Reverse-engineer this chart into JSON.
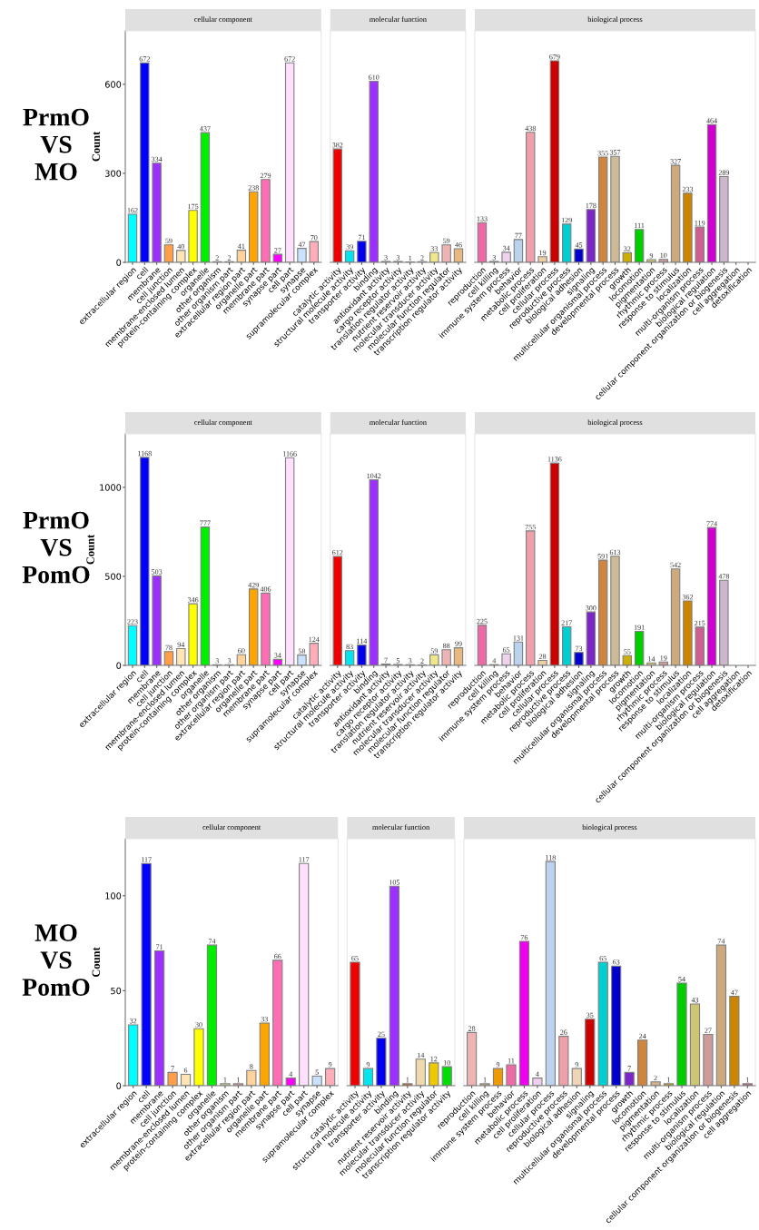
{
  "chart_data": [
    {
      "type": "bar",
      "title": "cellular component",
      "ylabel": "Count",
      "annotations": [
        "PrmO\nVS\nMO"
      ],
      "ylim": [
        0,
        780
      ],
      "yticks": [
        0,
        300,
        600
      ],
      "data_labels": true,
      "categories": [
        "extracellular region",
        "cell",
        "membrane",
        "cell junction",
        "membrane-enclosed lumen",
        "protein-containing complex",
        "organelle",
        "other organism",
        "other organism part",
        "extracellular region part",
        "organelle part",
        "membrane part",
        "synapse part",
        "cell part",
        "synapse",
        "supramolecular complex"
      ],
      "values": [
        162,
        672,
        334,
        59,
        40,
        175,
        437,
        2,
        2,
        41,
        238,
        279,
        27,
        672,
        47,
        70
      ],
      "colors": [
        "#00ffff",
        "#0000ff",
        "#9b30ff",
        "#ff9f4a",
        "#ffe4b5",
        "#ffff00",
        "#00ee00",
        "#eee8aa",
        "#f4a0a0",
        "#ffd39b",
        "#ffa500",
        "#ff6eb4",
        "#ff00ff",
        "#ffe1ff",
        "#cae1ff",
        "#ffaeb9"
      ]
    },
    {
      "type": "bar",
      "title": "molecular function",
      "tick_labels": "x",
      "ylim": [
        0,
        780
      ],
      "data_labels": true,
      "categories": [
        "catalytic activity",
        "structural molecule activity",
        "transporter activity",
        "binding",
        "antioxidant activity",
        "cargo receptor activity",
        "translation regulator activity",
        "nutrient reservoir activity",
        "molecular transducer activity",
        "molecular function regulator",
        "transcription regulator activity"
      ],
      "values": [
        382,
        39,
        71,
        610,
        3,
        3,
        1,
        2,
        33,
        59,
        46
      ],
      "colors": [
        "#ee0000",
        "#00e5ee",
        "#0000ee",
        "#9b30ff",
        "#cd853f",
        "#deb887",
        "#8b8378",
        "#006400",
        "#f0e68c",
        "#eeb4b4",
        "#e8b87f"
      ]
    },
    {
      "type": "bar",
      "title": "biological process",
      "tick_labels": "x",
      "ylim": [
        0,
        780
      ],
      "data_labels": true,
      "categories": [
        "reproduction",
        "cell killing",
        "immune system process",
        "behavior",
        "metabolic process",
        "cell proliferation",
        "cellular process",
        "reproductive process",
        "biological adhesion",
        "signaling",
        "multicellular organismal process",
        "developmental process",
        "growth",
        "locomotion",
        "pigmentation",
        "rhythmic process",
        "response to stimulus",
        "localization",
        "multi-organism process",
        "biological regulation",
        "cellular component organization or biogenesis",
        "cell aggregation",
        "detoxification"
      ],
      "values": [
        133,
        3,
        34,
        77,
        438,
        19,
        679,
        129,
        45,
        178,
        355,
        357,
        32,
        111,
        9,
        10,
        327,
        233,
        119,
        464,
        289,
        null,
        null
      ],
      "colors": [
        "#ee6aa7",
        "#8b1c62",
        "#eed2ee",
        "#b9d3ee",
        "#f0a0aa",
        "#eecfa1",
        "#cd0000",
        "#00ced1",
        "#0000cd",
        "#7b27c8",
        "#cd853f",
        "#cdba96",
        "#cdad00",
        "#00cd00",
        "#cdc673",
        "#cd9b9b",
        "#cdaa7d",
        "#cd8500",
        "#cd6090",
        "#cd00cd",
        "#cdb5cd",
        "#cd6090",
        "#cd6090"
      ]
    },
    {
      "type": "bar",
      "title": "cellular component",
      "ylabel": "Count",
      "annotations": [
        "PrmO\nVS\nPomO"
      ],
      "ylim": [
        0,
        1300
      ],
      "yticks": [
        0,
        500,
        1000
      ],
      "data_labels": true,
      "categories": [
        "extracellular region",
        "cell",
        "membrane",
        "cell junction",
        "membrane-enclosed lumen",
        "protein-containing complex",
        "organelle",
        "other organism",
        "other organism part",
        "extracellular region part",
        "organelle part",
        "membrane part",
        "synapse part",
        "cell part",
        "synapse",
        "supramolecular complex"
      ],
      "values": [
        223,
        1168,
        503,
        78,
        94,
        346,
        777,
        3,
        3,
        60,
        429,
        406,
        34,
        1166,
        58,
        124
      ],
      "colors": [
        "#00ffff",
        "#0000ff",
        "#9b30ff",
        "#ff9f4a",
        "#ffe4b5",
        "#ffff00",
        "#00ee00",
        "#eee8aa",
        "#f4a0a0",
        "#ffd39b",
        "#ffa500",
        "#ff6eb4",
        "#ff00ff",
        "#ffe1ff",
        "#cae1ff",
        "#ffaeb9"
      ]
    },
    {
      "type": "bar",
      "title": "molecular function",
      "tick_labels": "x",
      "ylim": [
        0,
        1300
      ],
      "data_labels": true,
      "categories": [
        "catalytic activity",
        "structural molecule activity",
        "transporter activity",
        "binding",
        "antioxidant activity",
        "cargo receptor activity",
        "translation regulator activity",
        "nutrient reservoir activity",
        "molecular transducer activity",
        "molecular function regulator",
        "transcription regulator activity"
      ],
      "values": [
        612,
        83,
        114,
        1042,
        7,
        5,
        3,
        2,
        59,
        88,
        99
      ],
      "colors": [
        "#ee0000",
        "#00e5ee",
        "#0000ee",
        "#9b30ff",
        "#cd853f",
        "#deb887",
        "#8b8378",
        "#006400",
        "#f0e68c",
        "#eeb4b4",
        "#e8b87f"
      ]
    },
    {
      "type": "bar",
      "title": "biological process",
      "tick_labels": "x",
      "ylim": [
        0,
        1300
      ],
      "data_labels": true,
      "categories": [
        "reproduction",
        "cell killing",
        "immune system process",
        "behavior",
        "metabolic process",
        "cell proliferation",
        "cellular process",
        "reproductive process",
        "biological adhesion",
        "signaling",
        "multicellular organismal process",
        "developmental process",
        "growth",
        "locomotion",
        "pigmentation",
        "rhythmic process",
        "response to stimulus",
        "localization",
        "multi-organism process",
        "biological regulation",
        "cellular component organization or biogenesis",
        "cell aggregation",
        "detoxification"
      ],
      "values": [
        225,
        4,
        65,
        131,
        755,
        28,
        1136,
        217,
        73,
        300,
        591,
        613,
        55,
        191,
        14,
        19,
        542,
        362,
        215,
        774,
        478,
        null,
        null
      ],
      "colors": [
        "#ee6aa7",
        "#8b1c62",
        "#eed2ee",
        "#b9d3ee",
        "#f0a0aa",
        "#eecfa1",
        "#cd0000",
        "#00ced1",
        "#0000cd",
        "#7b27c8",
        "#cd853f",
        "#cdba96",
        "#cdad00",
        "#00cd00",
        "#cdc673",
        "#cd9b9b",
        "#cdaa7d",
        "#cd8500",
        "#cd6090",
        "#cd00cd",
        "#cdb5cd",
        "#cd6090",
        "#cd6090"
      ]
    },
    {
      "type": "bar",
      "title": "cellular component",
      "ylabel": "Count",
      "annotations": [
        "MO\nVS\nPomO"
      ],
      "ylim": [
        0,
        130
      ],
      "yticks": [
        0,
        50,
        100
      ],
      "data_labels": true,
      "categories": [
        "extracellular region",
        "cell",
        "membrane",
        "cell junction",
        "membrane-enclosed lumen",
        "protein-containing complex",
        "organelle",
        "other organism",
        "other organism part",
        "extracellular region part",
        "organelle part",
        "membrane part",
        "synapse part",
        "cell part",
        "synapse",
        "supramolecular complex"
      ],
      "values": [
        32,
        117,
        71,
        7,
        6,
        30,
        74,
        1,
        1,
        8,
        33,
        66,
        4,
        117,
        5,
        9
      ],
      "colors": [
        "#00ffff",
        "#0000ff",
        "#9b30ff",
        "#ff9f4a",
        "#ffe4b5",
        "#ffff00",
        "#00ee00",
        "#eee8aa",
        "#f4a0a0",
        "#ffd39b",
        "#ffa500",
        "#ff6eb4",
        "#ff00ff",
        "#ffe1ff",
        "#cae1ff",
        "#ffaeb9"
      ]
    },
    {
      "type": "bar",
      "title": "molecular function",
      "tick_labels": "x",
      "ylim": [
        0,
        130
      ],
      "data_labels": true,
      "categories": [
        "catalytic activity",
        "structural molecule activity",
        "transporter activity",
        "binding",
        "nutrient reservoir activity",
        "molecular transducer activity",
        "molecular function regulator",
        "transcription regulator activity"
      ],
      "values": [
        65,
        9,
        25,
        105,
        1,
        14,
        12,
        10
      ],
      "colors": [
        "#ee0000",
        "#00e5ee",
        "#0000ee",
        "#9b30ff",
        "#cd661d",
        "#eed8ae",
        "#eec900",
        "#00dd00"
      ]
    },
    {
      "type": "bar",
      "title": "biological process",
      "tick_labels": "x",
      "ylim": [
        0,
        130
      ],
      "data_labels": true,
      "categories": [
        "reproduction",
        "cell killing",
        "immune system process",
        "behavior",
        "metabolic process",
        "cell proliferation",
        "cellular process",
        "reproductive process",
        "biological adhesion",
        "signaling",
        "multicellular organismal process",
        "developmental process",
        "growth",
        "locomotion",
        "pigmentation",
        "rhythmic process",
        "response to stimulus",
        "localization",
        "multi-organism process",
        "biological regulation",
        "cellular component organization or biogenesis",
        "cell aggregation"
      ],
      "values": [
        28,
        1,
        9,
        11,
        76,
        4,
        118,
        26,
        9,
        35,
        65,
        63,
        7,
        24,
        2,
        1,
        54,
        43,
        27,
        74,
        47,
        1
      ],
      "colors": [
        "#eeb4b4",
        "#d2b48c",
        "#ee9a00",
        "#ee6aa7",
        "#ee00ee",
        "#f0d0f0",
        "#bcd2ee",
        "#ee9faa",
        "#eed5b7",
        "#cd0000",
        "#00ced1",
        "#0000cd",
        "#7b27c8",
        "#cd853f",
        "#d2b48c",
        "#cdad00",
        "#00cd00",
        "#cdc673",
        "#cd9b9b",
        "#cdaa7d",
        "#cd8500",
        "#cd6090"
      ]
    }
  ]
}
